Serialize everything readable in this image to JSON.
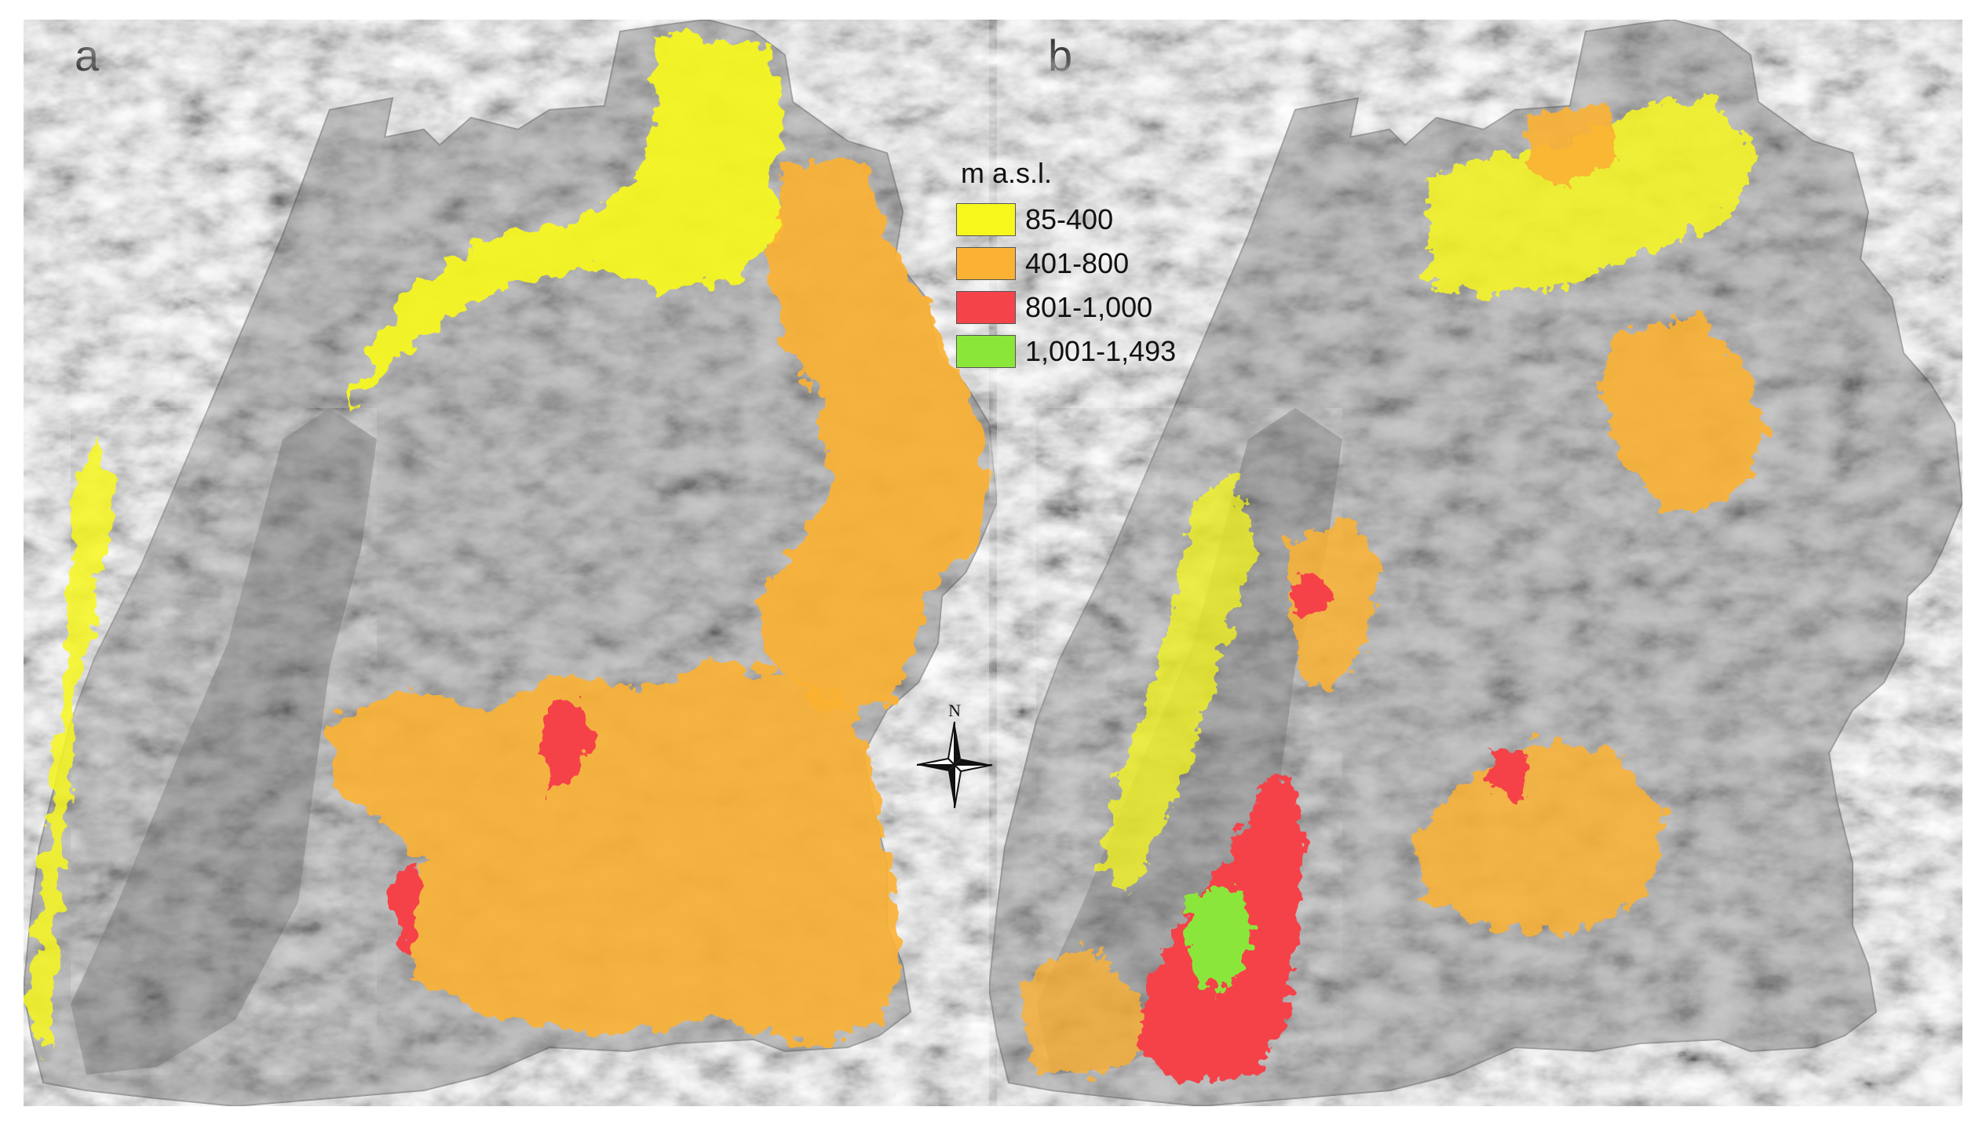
{
  "panels": [
    {
      "letter": "a"
    },
    {
      "letter": "b"
    }
  ],
  "legend": {
    "title": "m a.s.l.",
    "classes": [
      {
        "label": "85-400",
        "color": "#f7f71c"
      },
      {
        "label": "401-800",
        "color": "#fbb133"
      },
      {
        "label": "801-1,000",
        "color": "#f5434a"
      },
      {
        "label": "1,001-1,493",
        "color": "#8be63a"
      }
    ]
  },
  "north_arrow": {
    "label": "N"
  },
  "colors": {
    "relief_base": "#c8c8c8",
    "relief_dark": "#9a9a9a",
    "relief_light": "#e2e2e2"
  }
}
